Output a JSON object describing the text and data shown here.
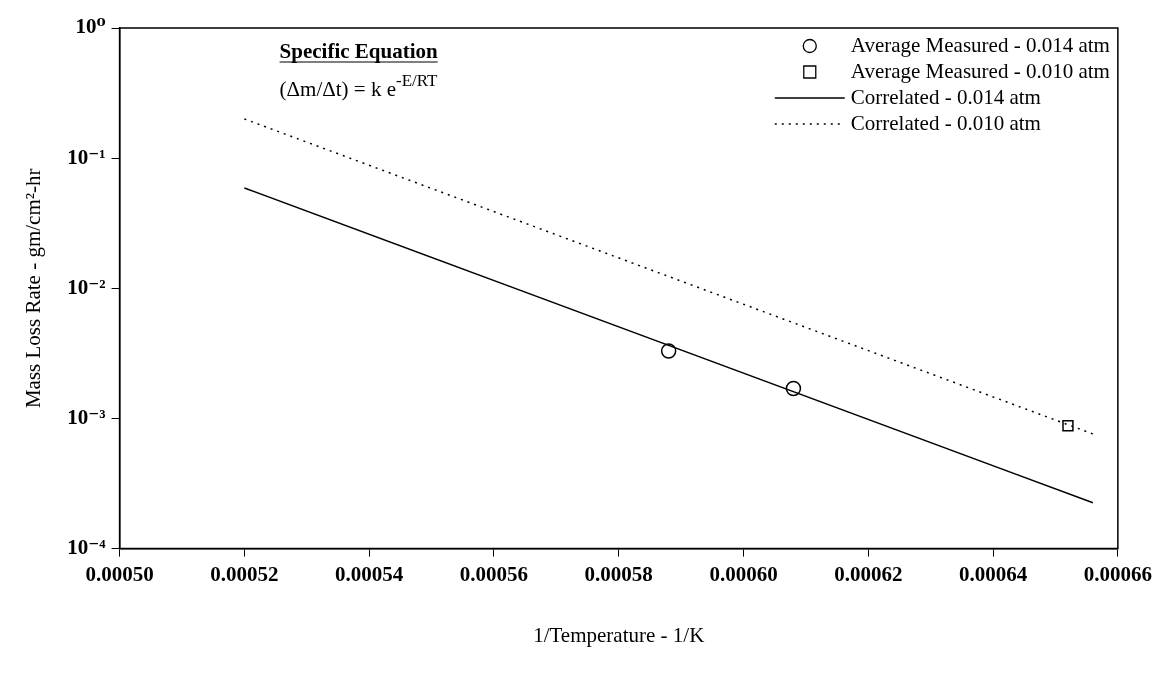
{
  "chart_data": {
    "type": "scatter",
    "xlabel": "1/Temperature - 1/K",
    "ylabel": "Mass Loss Rate - gm/cm²-hr",
    "annotations": [
      "Specific Equation",
      "(Δm/Δt) = k e$^{-E/RT}$"
    ],
    "log": "y",
    "grid": false,
    "legend": "top right",
    "xlim": [
      0.0005,
      0.00066
    ],
    "xticks": [
      {
        "value": 0.0005,
        "label": "0.00050"
      },
      {
        "value": 0.00052,
        "label": "0.00052"
      },
      {
        "value": 0.00054,
        "label": "0.00054"
      },
      {
        "value": 0.00056,
        "label": "0.00056"
      },
      {
        "value": 0.00058,
        "label": "0.00058"
      },
      {
        "value": 0.0006,
        "label": "0.00060"
      },
      {
        "value": 0.00062,
        "label": "0.00062"
      },
      {
        "value": 0.00064,
        "label": "0.00064"
      },
      {
        "value": 0.00066,
        "label": "0.00066"
      }
    ],
    "ylim": [
      0.0001,
      1
    ],
    "yticks": [
      {
        "value": 0.0001,
        "label": "10⁻⁴"
      },
      {
        "value": 0.001,
        "label": "10⁻³"
      },
      {
        "value": 0.01,
        "label": "10⁻²"
      },
      {
        "value": 0.1,
        "label": "10⁻¹"
      },
      {
        "value": 1,
        "label": "10⁰"
      }
    ],
    "series": [
      {
        "name": "Average Measured - 0.014 atm",
        "type": "scatter",
        "marker": "circle",
        "color": "#000000",
        "x": [
          0.000588,
          0.000608
        ],
        "values": [
          0.0033,
          0.0017
        ]
      },
      {
        "name": "Average Measured - 0.010 atm",
        "type": "scatter",
        "marker": "square",
        "color": "#000000",
        "x": [
          0.000652
        ],
        "values": [
          0.00088
        ]
      },
      {
        "name": "Correlated - 0.014 atm",
        "type": "line",
        "marker": "none",
        "line_style": "solid",
        "color": "#000000",
        "x": [
          0.00052,
          0.000656
        ],
        "values": [
          0.059,
          0.000225
        ]
      },
      {
        "name": "Correlated - 0.010 atm",
        "type": "line",
        "marker": "none",
        "line_style": "dotted",
        "color": "#000000",
        "x": [
          0.00052,
          0.000656
        ],
        "values": [
          0.2,
          0.00076
        ]
      }
    ]
  }
}
